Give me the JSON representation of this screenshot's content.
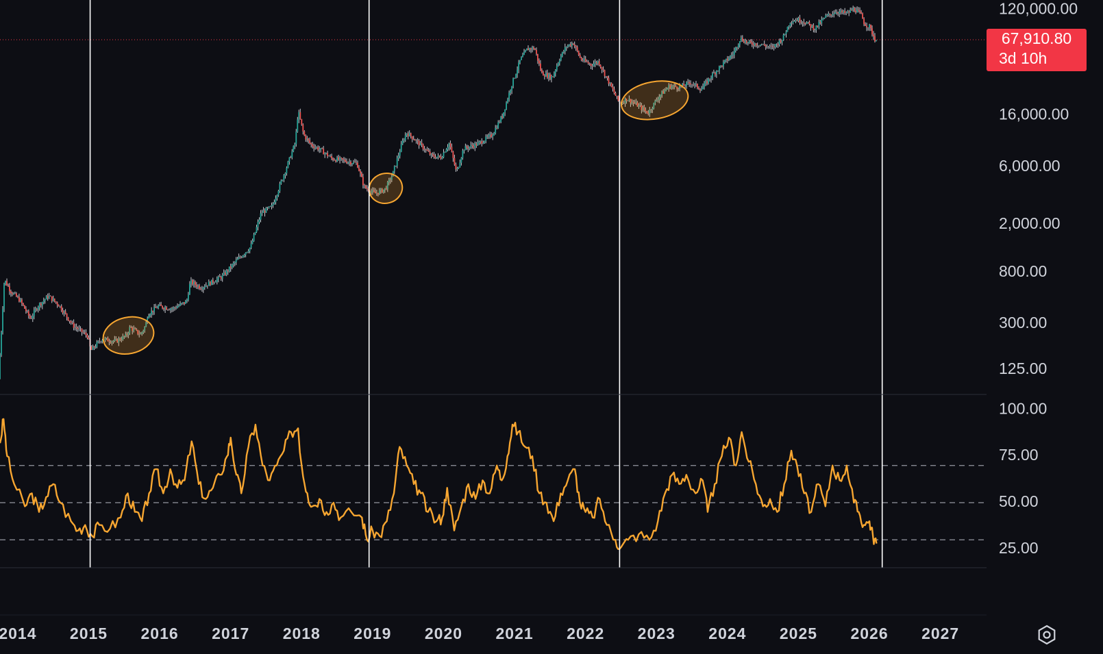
{
  "chart_data": [
    {
      "type": "candlestick",
      "panel": "price",
      "scale": "log",
      "ylim": [
        78,
        145000
      ],
      "y_ticks": [
        {
          "value": 120000,
          "label": "120,000.00"
        },
        {
          "value": 16000,
          "label": "16,000.00"
        },
        {
          "value": 6000,
          "label": "6,000.00"
        },
        {
          "value": 2000,
          "label": "2,000.00"
        },
        {
          "value": 800,
          "label": "800.00"
        },
        {
          "value": 300,
          "label": "300.00"
        },
        {
          "value": 125,
          "label": "125.00"
        }
      ],
      "current_price": {
        "value": 67910.8,
        "label": "67,910.80",
        "countdown": "3d 10h",
        "color": "#f23645"
      },
      "up_color": "#26a69a",
      "down_color": "#ef5350",
      "price_path": [
        [
          2013.75,
          105
        ],
        [
          2013.83,
          700
        ],
        [
          2013.92,
          560
        ],
        [
          2014.05,
          470
        ],
        [
          2014.2,
          330
        ],
        [
          2014.3,
          420
        ],
        [
          2014.45,
          510
        ],
        [
          2014.6,
          430
        ],
        [
          2014.8,
          290
        ],
        [
          2015.0,
          240
        ],
        [
          2015.05,
          180
        ],
        [
          2015.2,
          225
        ],
        [
          2015.4,
          215
        ],
        [
          2015.55,
          240
        ],
        [
          2015.6,
          280
        ],
        [
          2015.75,
          245
        ],
        [
          2015.82,
          290
        ],
        [
          2015.85,
          360
        ],
        [
          2016.0,
          420
        ],
        [
          2016.2,
          400
        ],
        [
          2016.4,
          460
        ],
        [
          2016.45,
          670
        ],
        [
          2016.6,
          600
        ],
        [
          2016.9,
          740
        ],
        [
          2017.1,
          1000
        ],
        [
          2017.3,
          1300
        ],
        [
          2017.45,
          2500
        ],
        [
          2017.6,
          2800
        ],
        [
          2017.8,
          5800
        ],
        [
          2017.93,
          9500
        ],
        [
          2017.97,
          17500
        ],
        [
          2018.05,
          11000
        ],
        [
          2018.15,
          9200
        ],
        [
          2018.3,
          8200
        ],
        [
          2018.45,
          7000
        ],
        [
          2018.6,
          6800
        ],
        [
          2018.8,
          6400
        ],
        [
          2018.9,
          4100
        ],
        [
          2019.05,
          3600
        ],
        [
          2019.2,
          3950
        ],
        [
          2019.3,
          5200
        ],
        [
          2019.45,
          10000
        ],
        [
          2019.5,
          11500
        ],
        [
          2019.6,
          10300
        ],
        [
          2019.75,
          8500
        ],
        [
          2019.85,
          7400
        ],
        [
          2019.98,
          7200
        ],
        [
          2020.1,
          9500
        ],
        [
          2020.2,
          5400
        ],
        [
          2020.3,
          8500
        ],
        [
          2020.5,
          9300
        ],
        [
          2020.7,
          11000
        ],
        [
          2020.85,
          16000
        ],
        [
          2020.98,
          29000
        ],
        [
          2021.1,
          46000
        ],
        [
          2021.2,
          57000
        ],
        [
          2021.3,
          58000
        ],
        [
          2021.4,
          36000
        ],
        [
          2021.55,
          33000
        ],
        [
          2021.65,
          47000
        ],
        [
          2021.75,
          60000
        ],
        [
          2021.85,
          64000
        ],
        [
          2021.95,
          47000
        ],
        [
          2022.1,
          42000
        ],
        [
          2022.2,
          45000
        ],
        [
          2022.35,
          30000
        ],
        [
          2022.5,
          20000
        ],
        [
          2022.6,
          22000
        ],
        [
          2022.75,
          19500
        ],
        [
          2022.9,
          16800
        ],
        [
          2023.05,
          23000
        ],
        [
          2023.2,
          28000
        ],
        [
          2023.35,
          27500
        ],
        [
          2023.5,
          30000
        ],
        [
          2023.65,
          26500
        ],
        [
          2023.8,
          34500
        ],
        [
          2023.95,
          42500
        ],
        [
          2024.1,
          52000
        ],
        [
          2024.2,
          70000
        ],
        [
          2024.3,
          64000
        ],
        [
          2024.5,
          62000
        ],
        [
          2024.65,
          58000
        ],
        [
          2024.8,
          70000
        ],
        [
          2024.9,
          96000
        ],
        [
          2025.0,
          100000
        ],
        [
          2025.1,
          96000
        ],
        [
          2025.25,
          84000
        ],
        [
          2025.4,
          105000
        ],
        [
          2025.55,
          117000
        ],
        [
          2025.7,
          112000
        ],
        [
          2025.8,
          123000
        ],
        [
          2025.9,
          110000
        ],
        [
          2025.95,
          92000
        ],
        [
          2026.02,
          87000
        ],
        [
          2026.1,
          67900
        ]
      ],
      "markers": [
        {
          "x": [
            2015.2,
            2015.92
          ],
          "y": [
            170,
            340
          ]
        },
        {
          "x": [
            2018.95,
            2019.42
          ],
          "y": [
            3000,
            5300
          ]
        },
        {
          "x": [
            2022.5,
            2023.45
          ],
          "y": [
            15000,
            30500
          ]
        }
      ]
    },
    {
      "type": "line",
      "panel": "oscillator",
      "color": "#f7a631",
      "ylim": [
        15,
        106
      ],
      "y_ticks": [
        {
          "value": 100,
          "label": "100.00"
        },
        {
          "value": 75,
          "label": "75.00"
        },
        {
          "value": 50,
          "label": "50.00"
        },
        {
          "value": 25,
          "label": "25.00"
        }
      ],
      "reference_lines": [
        70,
        50,
        30
      ],
      "points": [
        [
          2013.75,
          82
        ],
        [
          2013.8,
          95
        ],
        [
          2013.85,
          75
        ],
        [
          2013.95,
          60
        ],
        [
          2014.1,
          48
        ],
        [
          2014.2,
          55
        ],
        [
          2014.3,
          45
        ],
        [
          2014.4,
          53
        ],
        [
          2014.5,
          60
        ],
        [
          2014.6,
          50
        ],
        [
          2014.75,
          40
        ],
        [
          2014.85,
          35
        ],
        [
          2014.95,
          38
        ],
        [
          2015.05,
          32
        ],
        [
          2015.15,
          38
        ],
        [
          2015.3,
          36
        ],
        [
          2015.45,
          42
        ],
        [
          2015.55,
          55
        ],
        [
          2015.65,
          45
        ],
        [
          2015.75,
          40
        ],
        [
          2015.85,
          55
        ],
        [
          2015.95,
          68
        ],
        [
          2016.05,
          55
        ],
        [
          2016.15,
          68
        ],
        [
          2016.25,
          58
        ],
        [
          2016.35,
          62
        ],
        [
          2016.45,
          83
        ],
        [
          2016.55,
          60
        ],
        [
          2016.65,
          52
        ],
        [
          2016.75,
          58
        ],
        [
          2016.85,
          65
        ],
        [
          2016.95,
          75
        ],
        [
          2017.0,
          85
        ],
        [
          2017.08,
          65
        ],
        [
          2017.15,
          55
        ],
        [
          2017.25,
          80
        ],
        [
          2017.35,
          92
        ],
        [
          2017.45,
          70
        ],
        [
          2017.55,
          62
        ],
        [
          2017.65,
          70
        ],
        [
          2017.75,
          78
        ],
        [
          2017.85,
          88
        ],
        [
          2017.95,
          90
        ],
        [
          2018.0,
          70
        ],
        [
          2018.08,
          55
        ],
        [
          2018.15,
          48
        ],
        [
          2018.25,
          52
        ],
        [
          2018.35,
          45
        ],
        [
          2018.45,
          50
        ],
        [
          2018.55,
          42
        ],
        [
          2018.7,
          45
        ],
        [
          2018.85,
          42
        ],
        [
          2018.92,
          30
        ],
        [
          2019.0,
          35
        ],
        [
          2019.1,
          32
        ],
        [
          2019.2,
          40
        ],
        [
          2019.3,
          55
        ],
        [
          2019.38,
          80
        ],
        [
          2019.48,
          70
        ],
        [
          2019.58,
          60
        ],
        [
          2019.68,
          55
        ],
        [
          2019.78,
          45
        ],
        [
          2019.9,
          40
        ],
        [
          2019.98,
          42
        ],
        [
          2020.05,
          58
        ],
        [
          2020.15,
          35
        ],
        [
          2020.25,
          48
        ],
        [
          2020.35,
          60
        ],
        [
          2020.45,
          52
        ],
        [
          2020.55,
          62
        ],
        [
          2020.65,
          55
        ],
        [
          2020.75,
          70
        ],
        [
          2020.82,
          62
        ],
        [
          2020.9,
          75
        ],
        [
          2020.97,
          92
        ],
        [
          2021.05,
          88
        ],
        [
          2021.15,
          80
        ],
        [
          2021.25,
          75
        ],
        [
          2021.35,
          55
        ],
        [
          2021.45,
          50
        ],
        [
          2021.55,
          40
        ],
        [
          2021.65,
          55
        ],
        [
          2021.75,
          62
        ],
        [
          2021.85,
          68
        ],
        [
          2021.92,
          50
        ],
        [
          2022.0,
          45
        ],
        [
          2022.1,
          42
        ],
        [
          2022.2,
          52
        ],
        [
          2022.3,
          38
        ],
        [
          2022.42,
          30
        ],
        [
          2022.5,
          26
        ],
        [
          2022.6,
          30
        ],
        [
          2022.75,
          33
        ],
        [
          2022.9,
          30
        ],
        [
          2023.02,
          40
        ],
        [
          2023.12,
          55
        ],
        [
          2023.22,
          65
        ],
        [
          2023.32,
          60
        ],
        [
          2023.42,
          65
        ],
        [
          2023.55,
          55
        ],
        [
          2023.65,
          62
        ],
        [
          2023.72,
          45
        ],
        [
          2023.82,
          60
        ],
        [
          2023.92,
          75
        ],
        [
          2024.02,
          85
        ],
        [
          2024.12,
          70
        ],
        [
          2024.2,
          88
        ],
        [
          2024.3,
          72
        ],
        [
          2024.4,
          60
        ],
        [
          2024.5,
          48
        ],
        [
          2024.6,
          52
        ],
        [
          2024.7,
          45
        ],
        [
          2024.8,
          60
        ],
        [
          2024.9,
          78
        ],
        [
          2024.98,
          70
        ],
        [
          2025.08,
          55
        ],
        [
          2025.18,
          45
        ],
        [
          2025.28,
          60
        ],
        [
          2025.38,
          48
        ],
        [
          2025.48,
          70
        ],
        [
          2025.58,
          62
        ],
        [
          2025.68,
          70
        ],
        [
          2025.78,
          50
        ],
        [
          2025.85,
          45
        ],
        [
          2025.92,
          38
        ],
        [
          2026.0,
          40
        ],
        [
          2026.05,
          32
        ],
        [
          2026.1,
          28
        ]
      ]
    }
  ],
  "x_axis": {
    "ticks": [
      {
        "value": 2014,
        "label": "2014"
      },
      {
        "value": 2015,
        "label": "2015"
      },
      {
        "value": 2016,
        "label": "2016"
      },
      {
        "value": 2017,
        "label": "2017"
      },
      {
        "value": 2018,
        "label": "2018"
      },
      {
        "value": 2019,
        "label": "2019"
      },
      {
        "value": 2020,
        "label": "2020"
      },
      {
        "value": 2021,
        "label": "2021"
      },
      {
        "value": 2022,
        "label": "2022"
      },
      {
        "value": 2023,
        "label": "2023"
      },
      {
        "value": 2024,
        "label": "2024"
      },
      {
        "value": 2025,
        "label": "2025"
      },
      {
        "value": 2026,
        "label": "2026"
      },
      {
        "value": 2027,
        "label": "2027"
      }
    ],
    "range": [
      2013.75,
      2027.65
    ],
    "cycle_lines": [
      2015.02,
      2018.95,
      2022.48,
      2026.18
    ]
  },
  "toolbar": {
    "settings_icon": "settings-hexagon-icon"
  }
}
